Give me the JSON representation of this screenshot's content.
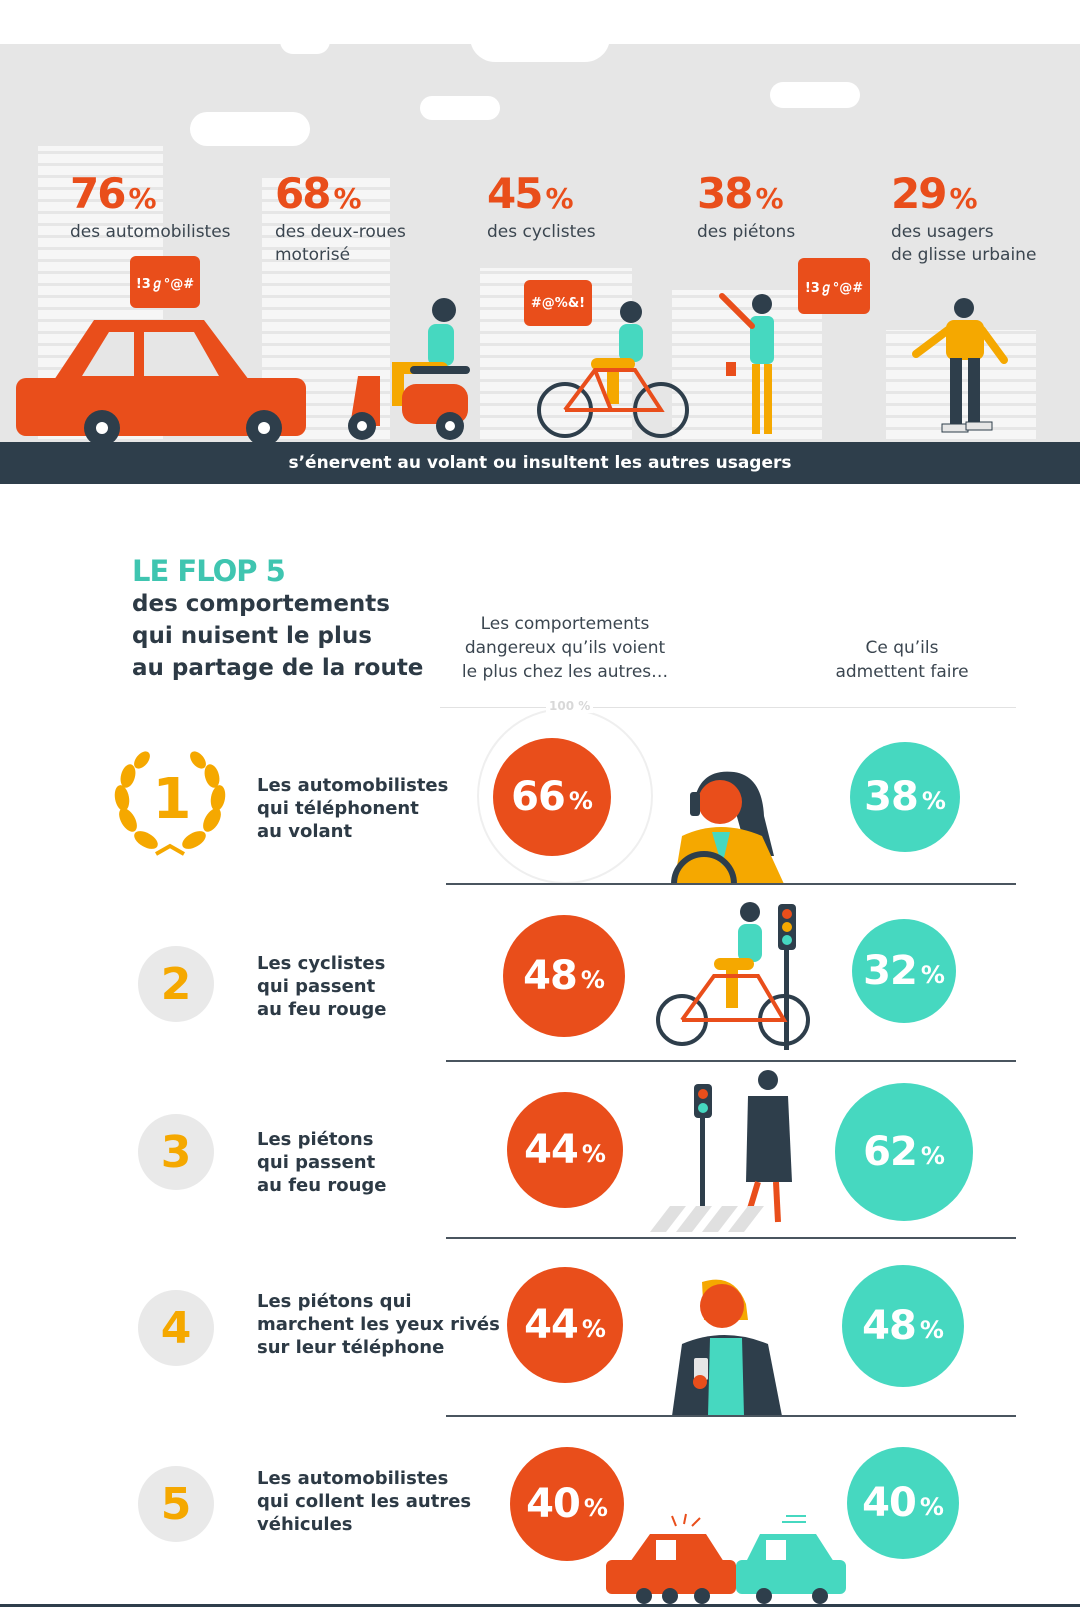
{
  "banner": {
    "stats": [
      {
        "value": "76",
        "unit": "%",
        "label": "des automobilistes"
      },
      {
        "value": "68",
        "unit": "%",
        "label": "des deux-roues\nmotorisé"
      },
      {
        "value": "45",
        "unit": "%",
        "label": "des cyclistes"
      },
      {
        "value": "38",
        "unit": "%",
        "label": "des piétons"
      },
      {
        "value": "29",
        "unit": "%",
        "label": "des usagers\nde glisse urbaine"
      }
    ],
    "bubbles": [
      "!3ℊ°@#",
      "#@%&!",
      "!3ℊ°@#"
    ],
    "caption": "s’énervent au volant ou insultent les autres usagers"
  },
  "flop": {
    "title": "LE FLOP 5",
    "subtitle": "des comportements\nqui nuisent le plus\nau partage de la route",
    "col_seen": "Les comportements\ndangereux qu’ils voient\nle plus chez les autres…",
    "col_admit": "Ce qu’ils\nadmettent faire",
    "ring_label": "100 %",
    "rows": [
      {
        "rank": "1",
        "label": "Les automobilistes\nqui téléphonent\nau volant",
        "seen": "66",
        "admit": "38"
      },
      {
        "rank": "2",
        "label": "Les cyclistes\nqui passent\nau feu rouge",
        "seen": "48",
        "admit": "32"
      },
      {
        "rank": "3",
        "label": "Les piétons\nqui passent\nau feu rouge",
        "seen": "44",
        "admit": "62"
      },
      {
        "rank": "4",
        "label": "Les piétons qui\nmarchent les yeux rivés\nsur leur téléphone",
        "seen": "44",
        "admit": "48"
      },
      {
        "rank": "5",
        "label": "Les automobilistes\nqui collent les autres\nvéhicules",
        "seen": "40",
        "admit": "40"
      }
    ],
    "unit": "%"
  },
  "colors": {
    "orange": "#e94e1b",
    "teal": "#46d8c0",
    "gold": "#f5a800",
    "navy": "#2e3e4b"
  }
}
